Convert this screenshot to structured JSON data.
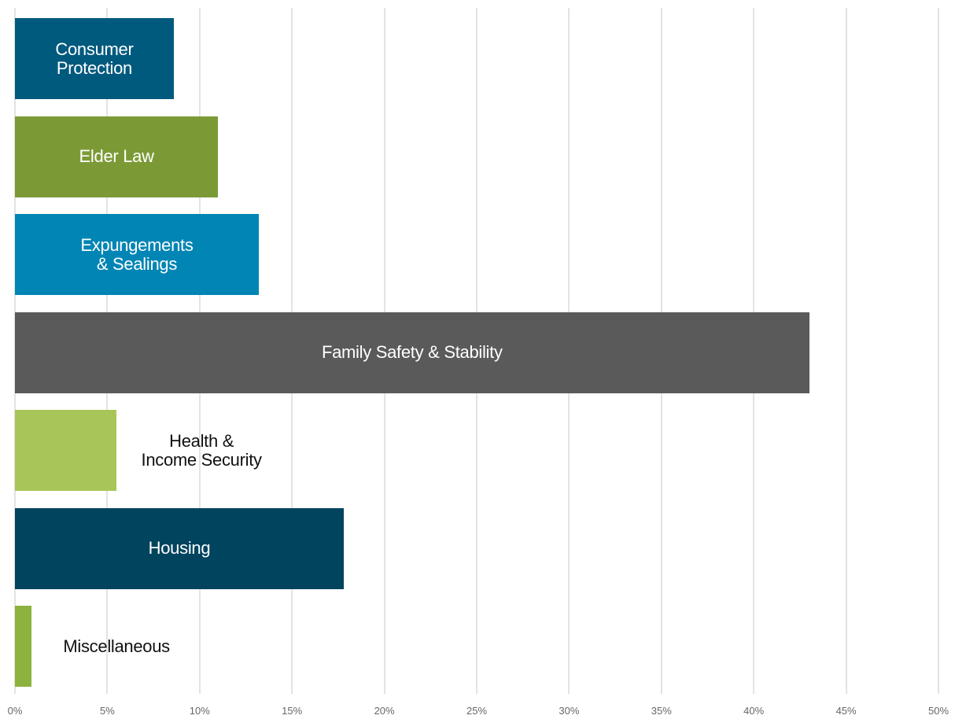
{
  "chart_data": {
    "type": "bar",
    "orientation": "horizontal",
    "categories": [
      "Consumer\nProtection",
      "Elder Law",
      "Expungements\n& Sealings",
      "Family Safety & Stability",
      "Health &\nIncome Security",
      "Housing",
      "Miscellaneous"
    ],
    "values": [
      8.6,
      11.0,
      13.2,
      43.0,
      5.5,
      17.8,
      0.9
    ],
    "colors": [
      "#005a7e",
      "#7b9a36",
      "#0085b5",
      "#5a5a5a",
      "#a8c657",
      "#00445e",
      "#8db23e"
    ],
    "xlim": [
      0,
      50
    ],
    "xticks": [
      {
        "value": 0,
        "label": "0%"
      },
      {
        "value": 5,
        "label": "5%"
      },
      {
        "value": 10,
        "label": "10%"
      },
      {
        "value": 15,
        "label": "15%"
      },
      {
        "value": 20,
        "label": "20%"
      },
      {
        "value": 25,
        "label": "25%"
      },
      {
        "value": 30,
        "label": "30%"
      },
      {
        "value": 35,
        "label": "35%"
      },
      {
        "value": 40,
        "label": "40%"
      },
      {
        "value": 45,
        "label": "45%"
      },
      {
        "value": 50,
        "label": "50%"
      }
    ],
    "grid": true
  }
}
